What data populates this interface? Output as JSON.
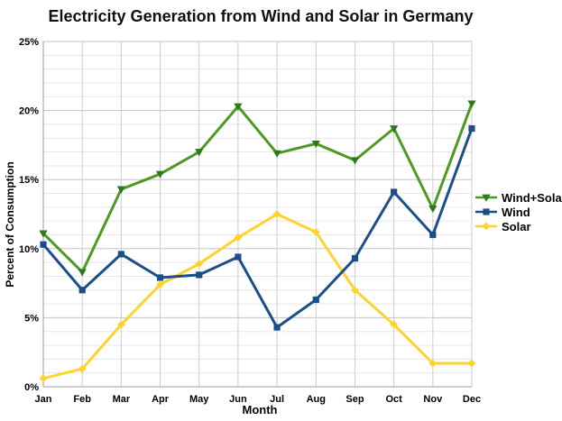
{
  "chart_data": {
    "type": "line",
    "title": "Electricity Generation from Wind and Solar in Germany",
    "xlabel": "Month",
    "ylabel": "Percent of Consumption",
    "categories": [
      "Jan",
      "Feb",
      "Mar",
      "Apr",
      "May",
      "Jun",
      "Jul",
      "Aug",
      "Sep",
      "Oct",
      "Nov",
      "Dec"
    ],
    "series": [
      {
        "name": "Wind+Solar",
        "marker": "triangle-down",
        "color": "#4c9a22",
        "marker_color": "#2d7a1b",
        "values": [
          11.1,
          8.3,
          14.3,
          15.4,
          17.0,
          20.3,
          16.9,
          17.6,
          16.4,
          18.7,
          12.9,
          20.5
        ]
      },
      {
        "name": "Wind",
        "marker": "square",
        "color": "#1b4f8a",
        "marker_color": "#1b4f8a",
        "values": [
          10.3,
          7.0,
          9.6,
          7.9,
          8.1,
          9.4,
          4.3,
          6.3,
          9.3,
          14.1,
          11.0,
          18.7
        ]
      },
      {
        "name": "Solar",
        "marker": "diamond",
        "color": "#ffd32e",
        "marker_color": "#ffd32e",
        "values": [
          0.6,
          1.3,
          4.5,
          7.4,
          8.9,
          10.8,
          12.5,
          11.2,
          7.0,
          4.5,
          1.7,
          1.7
        ]
      }
    ],
    "ylim": [
      0,
      25
    ],
    "ytick_labels": [
      "0%",
      "5%",
      "10%",
      "15%",
      "20%",
      "25%"
    ],
    "ytick_values": [
      0,
      5,
      10,
      15,
      20,
      25
    ],
    "minor_grid_step": 1,
    "grid": "on",
    "legend_position": "right",
    "colors": {
      "grid_minor": "#e7e7e7",
      "grid_major": "#c3c3c3",
      "grid_vertical": "#cdcdcd",
      "axis": "#9e9e9e",
      "text": "#000000",
      "title": "#111111",
      "background": "#ffffff"
    }
  }
}
